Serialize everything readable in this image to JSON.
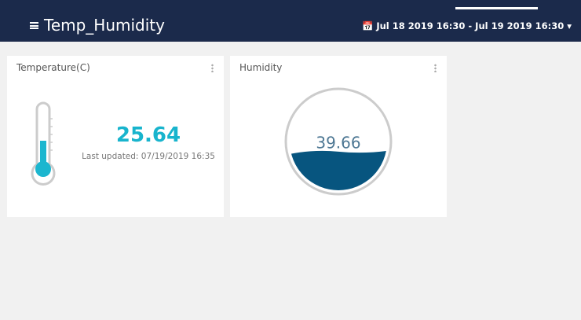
{
  "header": {
    "title": "Temp_Humidity",
    "date_range": "Jul 18 2019 16:30 - Jul 19 2019 16:30"
  },
  "widgets": [
    {
      "title": "Temperature(C)",
      "value": 25.64,
      "updated": "Last updated: 07/19/2019 16:35"
    },
    {
      "title": "Humidity",
      "value": 39.66
    }
  ]
}
